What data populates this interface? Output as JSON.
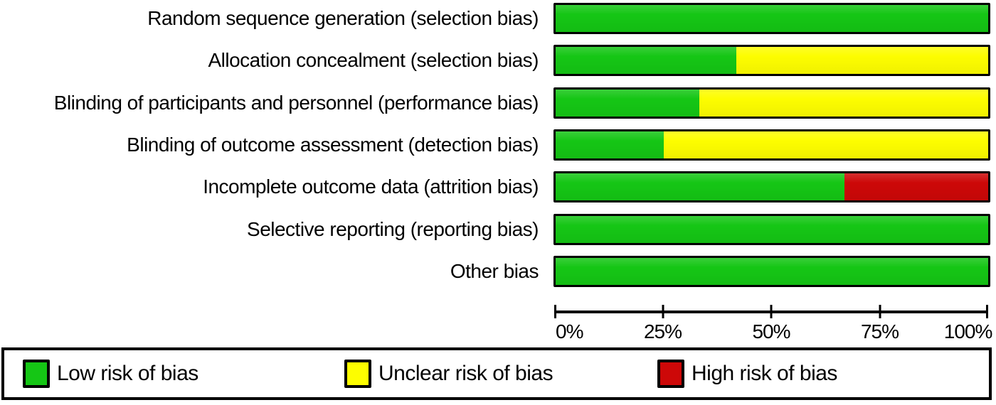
{
  "chart_data": {
    "type": "bar",
    "subtype": "horizontal_stacked_percentage",
    "categories": [
      "Random sequence generation (selection bias)",
      "Allocation concealment (selection bias)",
      "Blinding of participants and personnel (performance bias)",
      "Blinding of outcome assessment (detection bias)",
      "Incomplete outcome data (attrition bias)",
      "Selective reporting (reporting bias)",
      "Other bias"
    ],
    "series": [
      {
        "name": "Low risk of bias",
        "key": "low",
        "color": "#15C615",
        "values": [
          100,
          41.7,
          33.3,
          25,
          66.7,
          100,
          100
        ]
      },
      {
        "name": "Unclear risk of bias",
        "key": "unclear",
        "color": "#FDFD00",
        "values": [
          0,
          58.3,
          66.7,
          75,
          0,
          0,
          0
        ]
      },
      {
        "name": "High risk of bias",
        "key": "high",
        "color": "#CD0808",
        "values": [
          0,
          0,
          0,
          0,
          33.3,
          0,
          0
        ]
      }
    ],
    "x_axis": {
      "range": [
        0,
        100
      ],
      "tick_values": [
        0,
        25,
        50,
        75,
        100
      ],
      "tick_labels": [
        "0%",
        "25%",
        "50%",
        "75%",
        "100%"
      ]
    },
    "grid": "off",
    "legend_position": "bottom"
  },
  "legend": {
    "items": [
      {
        "label": "Low risk of bias",
        "color": "#15C615"
      },
      {
        "label": "Unclear risk of bias",
        "color": "#FDFD00"
      },
      {
        "label": "High risk of bias",
        "color": "#CD0808"
      }
    ]
  }
}
